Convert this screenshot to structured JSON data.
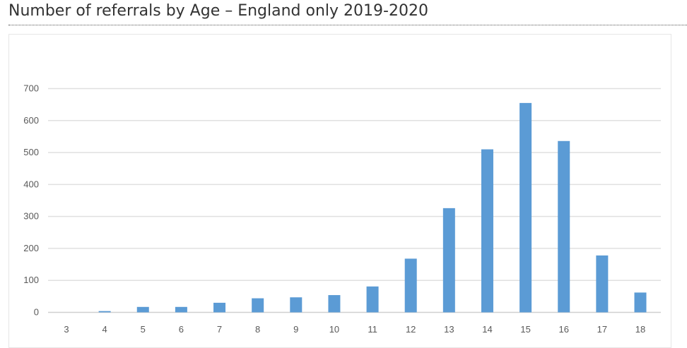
{
  "chart_data": {
    "type": "bar",
    "title": "Number of referrals by Age – England only 2019-2020",
    "xlabel": "",
    "ylabel": "",
    "categories": [
      "3",
      "4",
      "5",
      "6",
      "7",
      "8",
      "9",
      "10",
      "11",
      "12",
      "13",
      "14",
      "15",
      "16",
      "17",
      "18"
    ],
    "values": [
      0,
      4,
      17,
      17,
      30,
      44,
      47,
      54,
      81,
      168,
      326,
      510,
      655,
      536,
      178,
      62
    ],
    "ylim": [
      0,
      700
    ],
    "yticks": [
      0,
      100,
      200,
      300,
      400,
      500,
      600,
      700
    ],
    "grid": true,
    "legend": "none",
    "bar_color": "#5b9bd5"
  }
}
